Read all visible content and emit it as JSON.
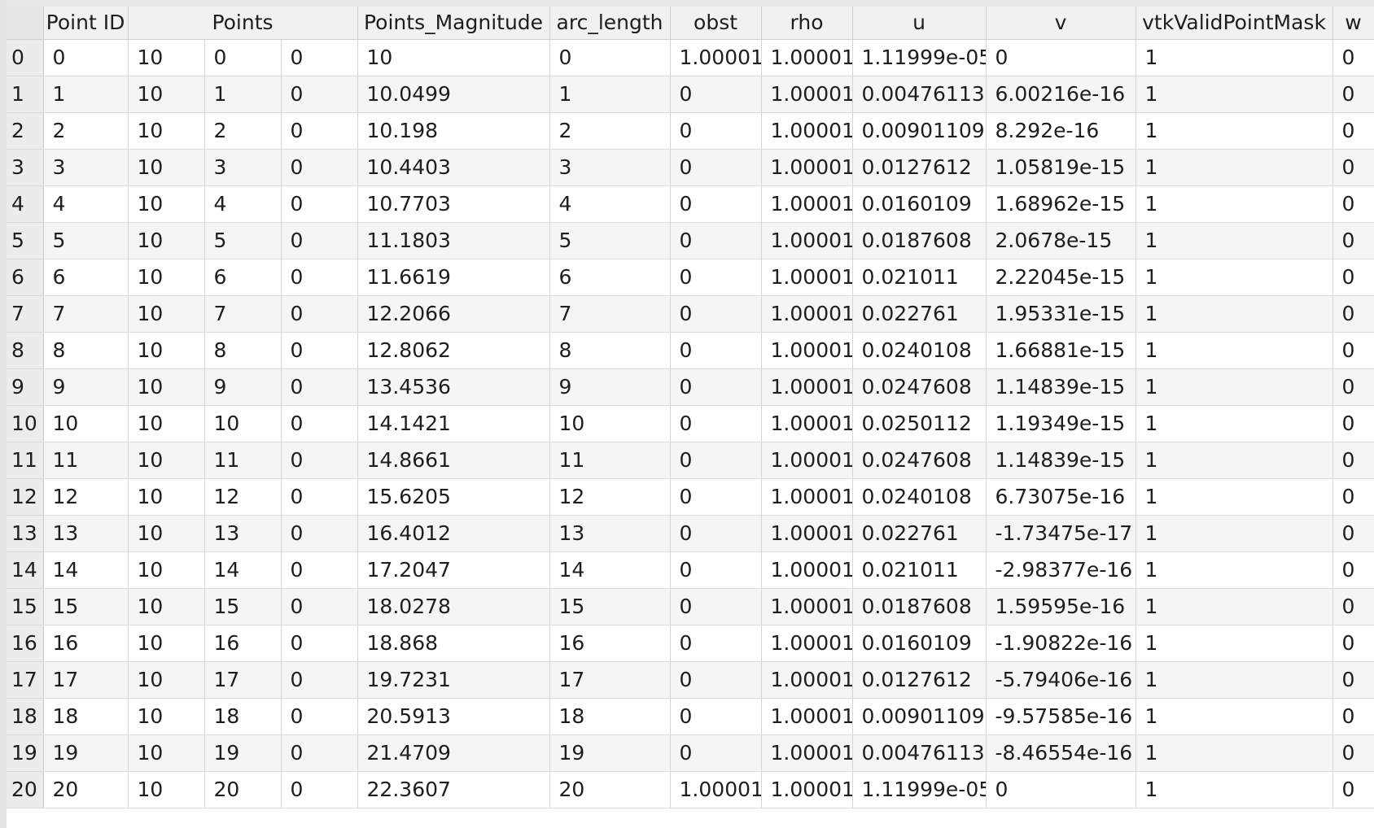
{
  "table": {
    "columns": [
      "",
      "Point ID",
      "Points",
      "Points_Magnitude",
      "arc_length",
      "obst",
      "rho",
      "u",
      "v",
      "vtkValidPointMask",
      "w"
    ],
    "rows": [
      {
        "index": "0",
        "cells": [
          "0",
          "10",
          "0",
          "0",
          "10",
          "0",
          "1.00001",
          "1.00001",
          "1.11999e-05",
          "0",
          "1",
          "0"
        ]
      },
      {
        "index": "1",
        "cells": [
          "1",
          "10",
          "1",
          "0",
          "10.0499",
          "1",
          "0",
          "1.00001",
          "0.00476113",
          "6.00216e-16",
          "1",
          "0"
        ]
      },
      {
        "index": "2",
        "cells": [
          "2",
          "10",
          "2",
          "0",
          "10.198",
          "2",
          "0",
          "1.00001",
          "0.00901109",
          "8.292e-16",
          "1",
          "0"
        ]
      },
      {
        "index": "3",
        "cells": [
          "3",
          "10",
          "3",
          "0",
          "10.4403",
          "3",
          "0",
          "1.00001",
          "0.0127612",
          "1.05819e-15",
          "1",
          "0"
        ]
      },
      {
        "index": "4",
        "cells": [
          "4",
          "10",
          "4",
          "0",
          "10.7703",
          "4",
          "0",
          "1.00001",
          "0.0160109",
          "1.68962e-15",
          "1",
          "0"
        ]
      },
      {
        "index": "5",
        "cells": [
          "5",
          "10",
          "5",
          "0",
          "11.1803",
          "5",
          "0",
          "1.00001",
          "0.0187608",
          "2.0678e-15",
          "1",
          "0"
        ]
      },
      {
        "index": "6",
        "cells": [
          "6",
          "10",
          "6",
          "0",
          "11.6619",
          "6",
          "0",
          "1.00001",
          "0.021011",
          "2.22045e-15",
          "1",
          "0"
        ]
      },
      {
        "index": "7",
        "cells": [
          "7",
          "10",
          "7",
          "0",
          "12.2066",
          "7",
          "0",
          "1.00001",
          "0.022761",
          "1.95331e-15",
          "1",
          "0"
        ]
      },
      {
        "index": "8",
        "cells": [
          "8",
          "10",
          "8",
          "0",
          "12.8062",
          "8",
          "0",
          "1.00001",
          "0.0240108",
          "1.66881e-15",
          "1",
          "0"
        ]
      },
      {
        "index": "9",
        "cells": [
          "9",
          "10",
          "9",
          "0",
          "13.4536",
          "9",
          "0",
          "1.00001",
          "0.0247608",
          "1.14839e-15",
          "1",
          "0"
        ]
      },
      {
        "index": "10",
        "cells": [
          "10",
          "10",
          "10",
          "0",
          "14.1421",
          "10",
          "0",
          "1.00001",
          "0.0250112",
          "1.19349e-15",
          "1",
          "0"
        ]
      },
      {
        "index": "11",
        "cells": [
          "11",
          "10",
          "11",
          "0",
          "14.8661",
          "11",
          "0",
          "1.00001",
          "0.0247608",
          "1.14839e-15",
          "1",
          "0"
        ]
      },
      {
        "index": "12",
        "cells": [
          "12",
          "10",
          "12",
          "0",
          "15.6205",
          "12",
          "0",
          "1.00001",
          "0.0240108",
          "6.73075e-16",
          "1",
          "0"
        ]
      },
      {
        "index": "13",
        "cells": [
          "13",
          "10",
          "13",
          "0",
          "16.4012",
          "13",
          "0",
          "1.00001",
          "0.022761",
          "-1.73475e-17",
          "1",
          "0"
        ]
      },
      {
        "index": "14",
        "cells": [
          "14",
          "10",
          "14",
          "0",
          "17.2047",
          "14",
          "0",
          "1.00001",
          "0.021011",
          "-2.98377e-16",
          "1",
          "0"
        ]
      },
      {
        "index": "15",
        "cells": [
          "15",
          "10",
          "15",
          "0",
          "18.0278",
          "15",
          "0",
          "1.00001",
          "0.0187608",
          "1.59595e-16",
          "1",
          "0"
        ]
      },
      {
        "index": "16",
        "cells": [
          "16",
          "10",
          "16",
          "0",
          "18.868",
          "16",
          "0",
          "1.00001",
          "0.0160109",
          "-1.90822e-16",
          "1",
          "0"
        ]
      },
      {
        "index": "17",
        "cells": [
          "17",
          "10",
          "17",
          "0",
          "19.7231",
          "17",
          "0",
          "1.00001",
          "0.0127612",
          "-5.79406e-16",
          "1",
          "0"
        ]
      },
      {
        "index": "18",
        "cells": [
          "18",
          "10",
          "18",
          "0",
          "20.5913",
          "18",
          "0",
          "1.00001",
          "0.00901109",
          "-9.57585e-16",
          "1",
          "0"
        ]
      },
      {
        "index": "19",
        "cells": [
          "19",
          "10",
          "19",
          "0",
          "21.4709",
          "19",
          "0",
          "1.00001",
          "0.00476113",
          "-8.46554e-16",
          "1",
          "0"
        ]
      },
      {
        "index": "20",
        "cells": [
          "20",
          "10",
          "20",
          "0",
          "22.3607",
          "20",
          "1.00001",
          "1.00001",
          "1.11999e-05",
          "0",
          "1",
          "0"
        ]
      }
    ]
  }
}
